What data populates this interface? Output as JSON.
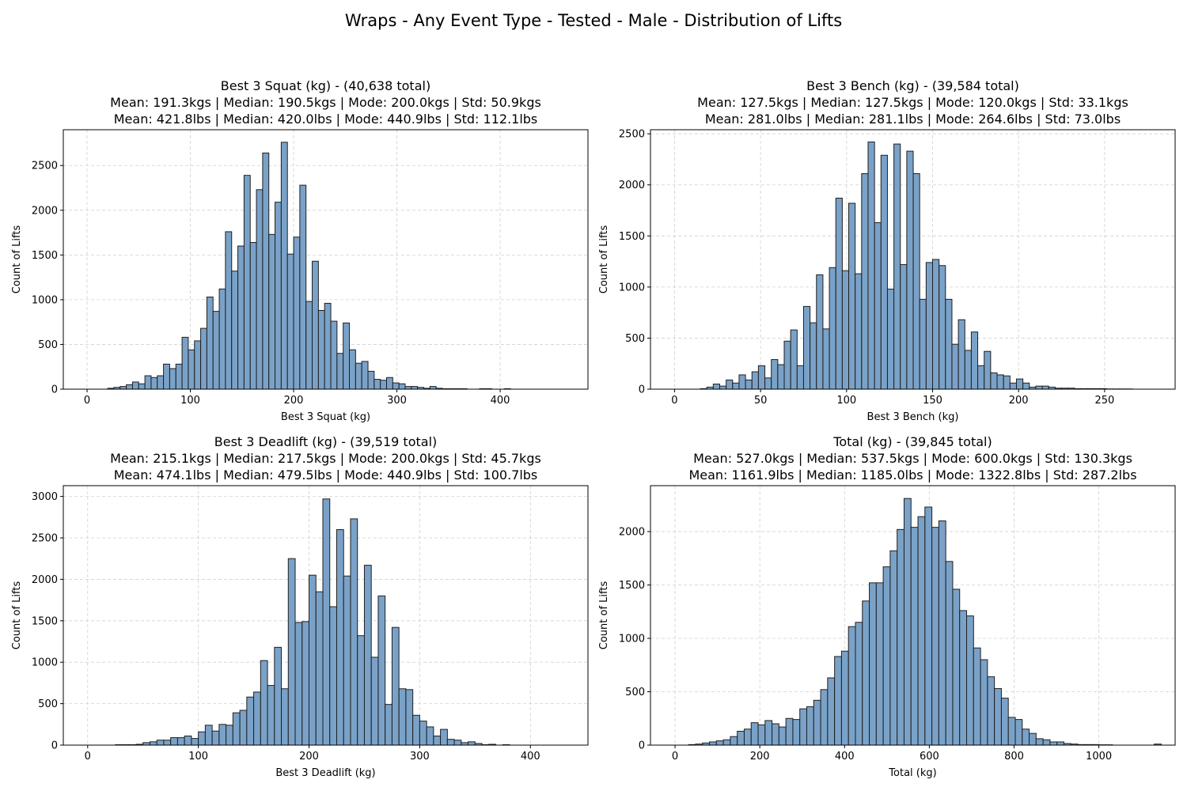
{
  "figure": {
    "title": "Wraps - Any Event Type - Tested - Male - Distribution of Lifts"
  },
  "style": {
    "bar_fill": "#7aa2c8",
    "bar_edge": "#1f1f1f",
    "grid_color": "#d0d0d0"
  },
  "chart_data": [
    {
      "type": "bar",
      "title": "Best 3 Squat (kg) - (40,638 total)",
      "subtitle_kg": "Mean: 191.3kgs | Median: 190.5kgs | Mode: 200.0kgs | Std: 50.9kgs",
      "subtitle_lbs": "Mean: 421.8lbs | Median: 420.0lbs | Mode: 440.9lbs | Std: 112.1lbs",
      "xlabel": "Best 3 Squat (kg)",
      "ylabel": "Count of Lifts",
      "xlim": [
        -23,
        485
      ],
      "ylim": [
        0,
        2900
      ],
      "xticks": [
        0,
        100,
        200,
        300,
        400
      ],
      "yticks": [
        0,
        500,
        1000,
        1500,
        2000,
        2500
      ],
      "grid": true,
      "bin_start": 20,
      "bin_width": 6,
      "values": [
        10,
        20,
        30,
        50,
        80,
        60,
        150,
        130,
        150,
        280,
        230,
        280,
        580,
        440,
        540,
        680,
        1030,
        870,
        1120,
        1760,
        1320,
        1600,
        2390,
        1640,
        2230,
        2640,
        1730,
        2090,
        2760,
        1510,
        1700,
        2280,
        980,
        1430,
        880,
        960,
        760,
        400,
        740,
        440,
        290,
        310,
        200,
        110,
        100,
        130,
        70,
        60,
        30,
        30,
        20,
        10,
        30,
        10,
        5,
        5,
        5,
        5,
        0,
        0,
        5,
        5,
        0,
        0,
        5
      ]
    },
    {
      "type": "bar",
      "title": "Best 3 Bench (kg) - (39,584 total)",
      "subtitle_kg": "Mean: 127.5kgs | Median: 127.5kgs | Mode: 120.0kgs | Std: 33.1kgs",
      "subtitle_lbs": "Mean: 281.0lbs | Median: 281.1lbs | Mode: 264.6lbs | Std: 73.0lbs",
      "xlabel": "Best 3 Bench (kg)",
      "ylabel": "Count of Lifts",
      "xlim": [
        -14,
        291
      ],
      "ylim": [
        0,
        2540
      ],
      "xticks": [
        0,
        50,
        100,
        150,
        200,
        250
      ],
      "yticks": [
        0,
        500,
        1000,
        1500,
        2000,
        2500
      ],
      "grid": true,
      "bin_start": 15,
      "bin_width": 3.75,
      "values": [
        5,
        20,
        50,
        30,
        90,
        60,
        140,
        90,
        170,
        230,
        110,
        290,
        240,
        470,
        580,
        230,
        810,
        650,
        1120,
        590,
        1190,
        1870,
        1160,
        1820,
        1130,
        2110,
        2420,
        1630,
        2290,
        980,
        2400,
        1220,
        2330,
        2110,
        880,
        1240,
        1270,
        1210,
        880,
        440,
        680,
        380,
        560,
        230,
        370,
        160,
        140,
        130,
        60,
        100,
        60,
        20,
        30,
        30,
        20,
        10,
        10,
        10,
        5,
        5,
        5,
        5,
        5,
        2,
        2,
        2,
        2
      ]
    },
    {
      "type": "bar",
      "title": "Best 3 Deadlift (kg) - (39,519 total)",
      "subtitle_kg": "Mean: 215.1kgs | Median: 217.5kgs | Mode: 200.0kgs | Std: 45.7kgs",
      "subtitle_lbs": "Mean: 474.1lbs | Median: 479.5lbs | Mode: 440.9lbs | Std: 100.7lbs",
      "xlabel": "Best 3 Deadlift (kg)",
      "ylabel": "Count of Lifts",
      "xlim": [
        -22,
        452
      ],
      "ylim": [
        0,
        3130
      ],
      "xticks": [
        0,
        100,
        200,
        300,
        400
      ],
      "yticks": [
        0,
        500,
        1000,
        1500,
        2000,
        2500,
        3000
      ],
      "grid": true,
      "bin_start": 25,
      "bin_width": 6.25,
      "values": [
        5,
        5,
        5,
        10,
        30,
        40,
        60,
        60,
        90,
        90,
        110,
        80,
        160,
        240,
        170,
        250,
        240,
        390,
        420,
        580,
        640,
        1020,
        720,
        1180,
        680,
        2250,
        1480,
        1490,
        2050,
        1850,
        2970,
        1670,
        2600,
        2040,
        2730,
        1320,
        2170,
        1060,
        1800,
        490,
        1420,
        680,
        670,
        360,
        290,
        220,
        110,
        190,
        70,
        60,
        30,
        40,
        20,
        5,
        10,
        0,
        5,
        0,
        0,
        0,
        0,
        0,
        0,
        0,
        0
      ]
    },
    {
      "type": "bar",
      "title": "Total (kg) - (39,845 total)",
      "subtitle_kg": "Mean: 527.0kgs | Median: 537.5kgs | Mode: 600.0kgs | Std: 130.3kgs",
      "subtitle_lbs": "Mean: 1161.9lbs | Median: 1185.0lbs | Mode: 1322.8lbs | Std: 287.2lbs",
      "xlabel": "Total (kg)",
      "ylabel": "Count of Lifts",
      "xlim": [
        -58,
        1180
      ],
      "ylim": [
        0,
        2430
      ],
      "xticks": [
        0,
        200,
        400,
        600,
        800,
        1000
      ],
      "yticks": [
        0,
        500,
        1000,
        1500,
        2000
      ],
      "grid": true,
      "bin_start": 32,
      "bin_width": 16.4,
      "values": [
        5,
        10,
        20,
        30,
        40,
        50,
        80,
        130,
        150,
        210,
        190,
        230,
        200,
        170,
        250,
        240,
        340,
        360,
        420,
        520,
        630,
        830,
        880,
        1110,
        1150,
        1350,
        1520,
        1520,
        1670,
        1820,
        2020,
        2310,
        2040,
        2140,
        2230,
        2040,
        2100,
        1720,
        1460,
        1260,
        1210,
        910,
        800,
        640,
        530,
        440,
        260,
        240,
        150,
        110,
        60,
        50,
        30,
        30,
        15,
        10,
        5,
        5,
        5,
        3,
        3,
        0,
        0,
        0,
        0,
        0,
        0,
        10,
        0,
        0,
        0,
        0
      ]
    }
  ]
}
